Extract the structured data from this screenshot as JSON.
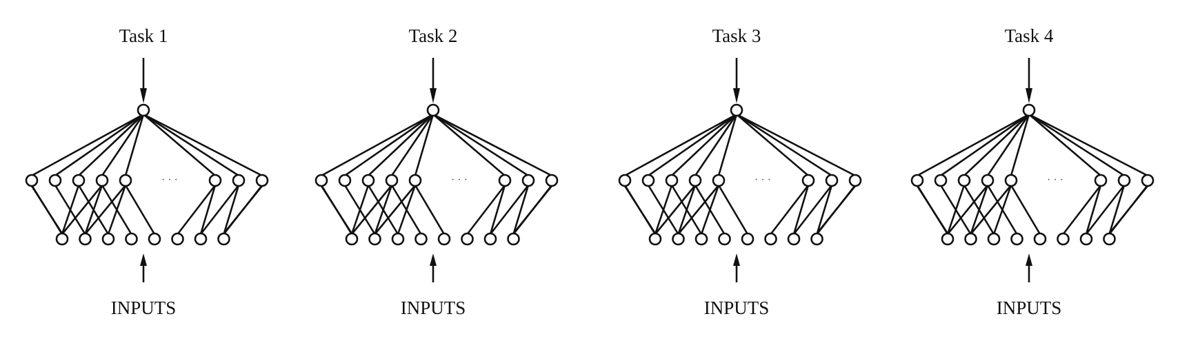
{
  "networks": [
    {
      "task_label": "Task 1",
      "input_label": "INPUTS"
    },
    {
      "task_label": "Task 2",
      "input_label": "INPUTS"
    },
    {
      "task_label": "Task 3",
      "input_label": "INPUTS"
    },
    {
      "task_label": "Task 4",
      "input_label": "INPUTS"
    }
  ],
  "ellipsis": "· · ·",
  "structure": {
    "output_nodes": 1,
    "hidden_nodes_left": 5,
    "hidden_nodes_right": 3,
    "input_nodes": 8
  },
  "colors": {
    "line": "#111111",
    "background": "#ffffff"
  }
}
